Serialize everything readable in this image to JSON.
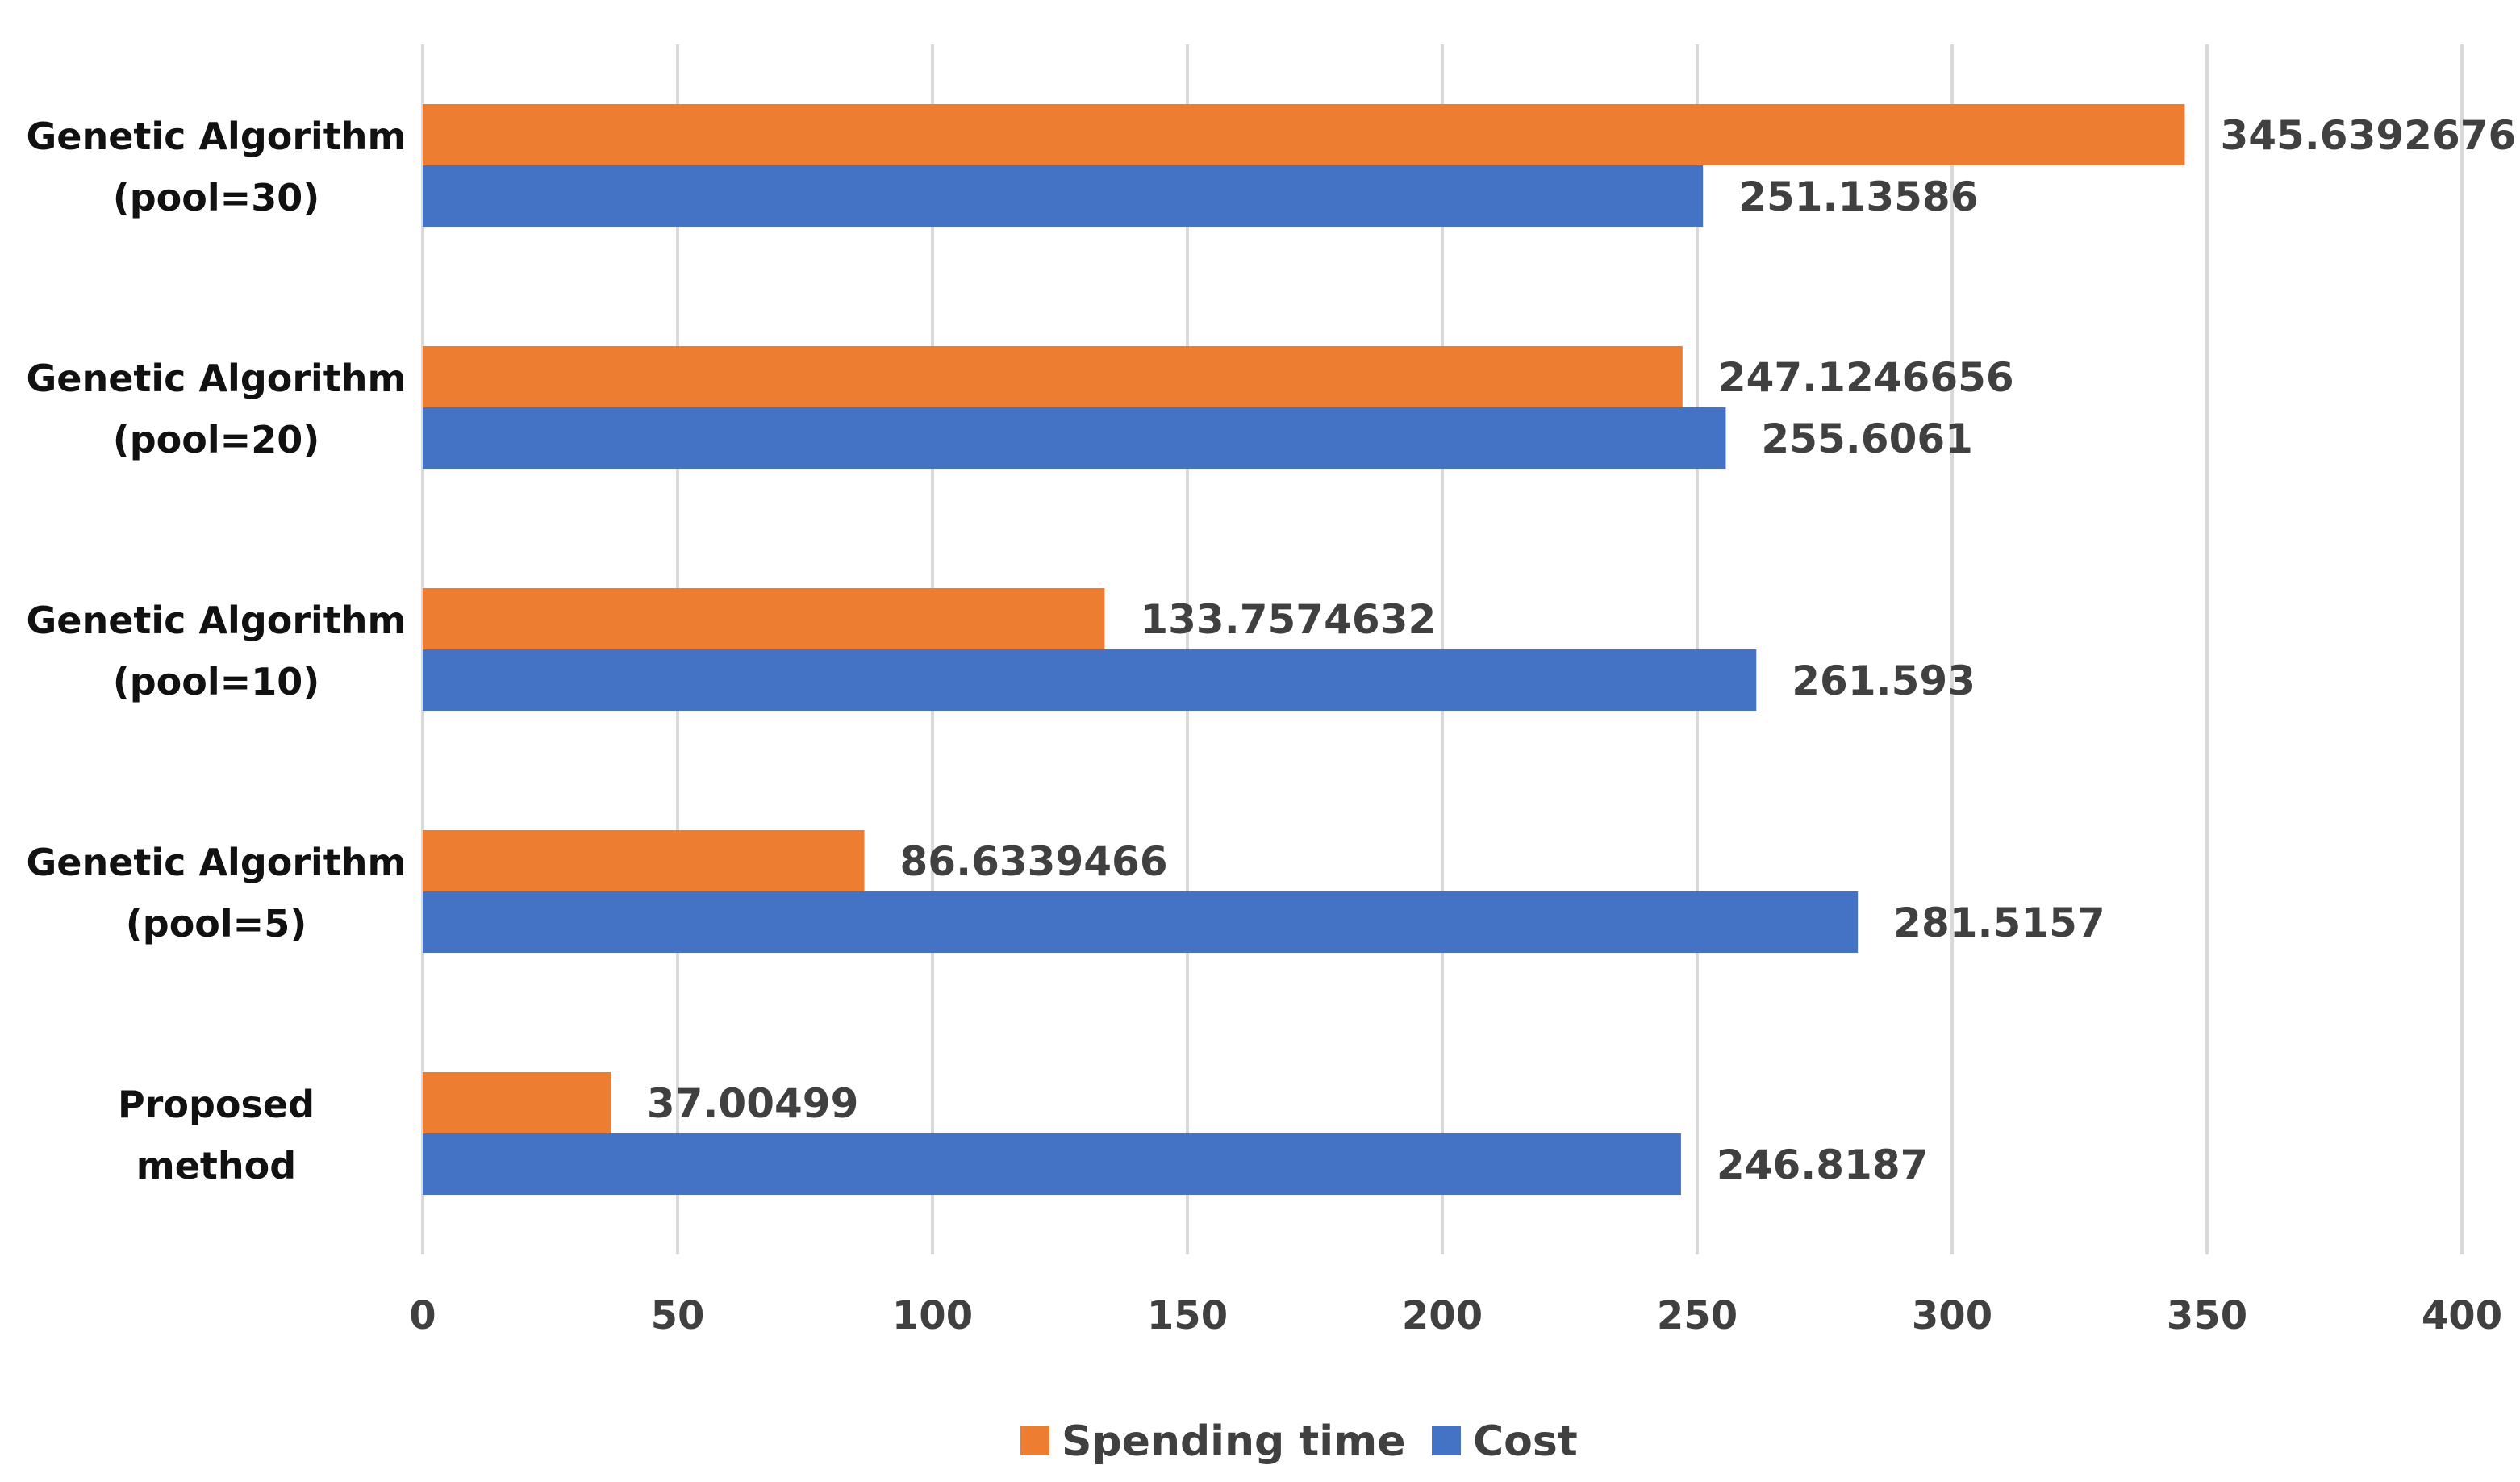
{
  "chart_data": {
    "type": "bar",
    "orientation": "horizontal",
    "title": "",
    "xlabel": "",
    "ylabel": "",
    "xlim": [
      0,
      400
    ],
    "x_ticks": [
      0,
      50,
      100,
      150,
      200,
      250,
      300,
      350,
      400
    ],
    "grid": true,
    "legend_position": "bottom",
    "categories": [
      {
        "line1": "Genetic Algorithm",
        "line2": "(pool=30)"
      },
      {
        "line1": "Genetic Algorithm",
        "line2": "(pool=20)"
      },
      {
        "line1": "Genetic Algorithm",
        "line2": "(pool=10)"
      },
      {
        "line1": "Genetic Algorithm",
        "line2": "(pool=5)"
      },
      {
        "line1": "Proposed",
        "line2": "method"
      }
    ],
    "series": [
      {
        "name": "Spending time",
        "color": "#ED7D31",
        "values": [
          345.6392676,
          247.1246656,
          133.7574632,
          86.6339466,
          37.00499
        ],
        "labels": [
          "345.6392676",
          "247.1246656",
          "133.7574632",
          "86.6339466",
          "37.00499"
        ]
      },
      {
        "name": "Cost",
        "color": "#4472C4",
        "values": [
          251.13586,
          255.6061,
          261.593,
          281.5157,
          246.8187
        ],
        "labels": [
          "251.13586",
          "255.6061",
          "261.593",
          "281.5157",
          "246.8187"
        ]
      }
    ],
    "gridline_color": "#D9D9D9"
  }
}
